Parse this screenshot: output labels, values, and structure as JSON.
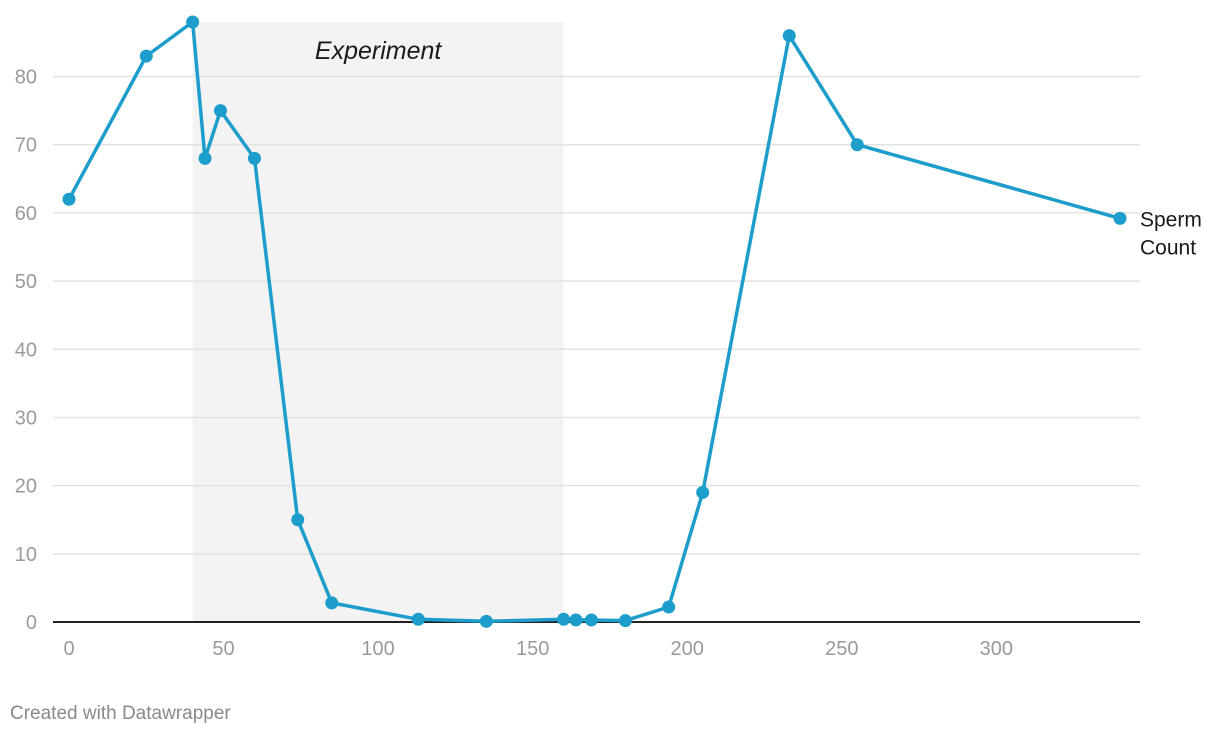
{
  "chart_data": {
    "type": "line",
    "title": "",
    "xlabel": "",
    "ylabel": "",
    "xlim": [
      0,
      345
    ],
    "ylim": [
      0,
      88
    ],
    "x_ticks": [
      0,
      50,
      100,
      150,
      200,
      250,
      300
    ],
    "y_ticks": [
      0,
      10,
      20,
      30,
      40,
      50,
      60,
      70,
      80
    ],
    "grid": true,
    "shaded_region": {
      "label": "Experiment",
      "x_start": 40,
      "x_end": 160
    },
    "series": [
      {
        "name": "Sperm Count",
        "x": [
          0,
          25,
          40,
          44,
          49,
          60,
          74,
          85,
          113,
          135,
          160,
          164,
          169,
          180,
          194,
          205,
          233,
          255,
          340
        ],
        "y": [
          62,
          83,
          88,
          68,
          75,
          68,
          15,
          2.8,
          0.4,
          0.1,
          0.4,
          0.3,
          0.3,
          0.2,
          2.2,
          19,
          86,
          70,
          59.2
        ]
      }
    ]
  },
  "colors": {
    "series": "#1d9dcb",
    "band": "#f3f3f3",
    "grid": "#e3e3e3",
    "axis": "#222222",
    "tick_text": "#9a9a9a",
    "label_text": "#1a1a1a",
    "credit_text": "#8a8a8a"
  },
  "footer": {
    "credit": "Created with Datawrapper"
  }
}
